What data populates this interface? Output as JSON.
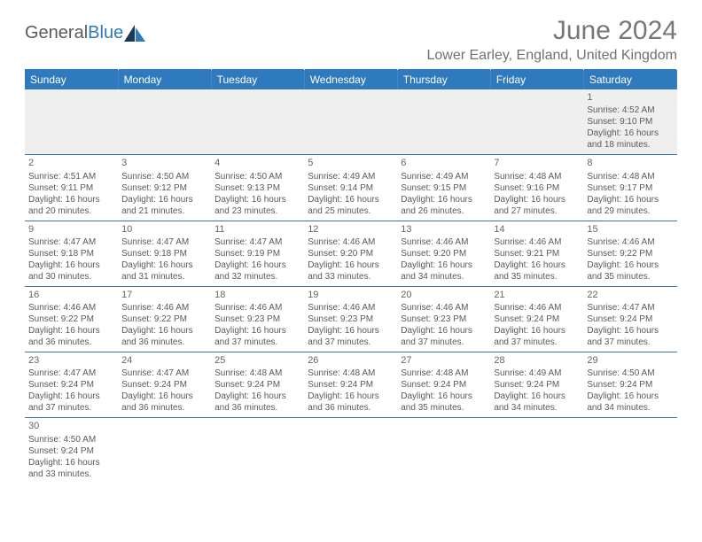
{
  "brand": {
    "part1": "General",
    "part2": "Blue"
  },
  "title": "June 2024",
  "location": "Lower Earley, England, United Kingdom",
  "colors": {
    "header_bg": "#2f79bd",
    "header_text": "#ffffff",
    "body_text": "#5a5a5a",
    "alt_row_bg": "#efefef",
    "border": "#2f79bd"
  },
  "day_headers": [
    "Sunday",
    "Monday",
    "Tuesday",
    "Wednesday",
    "Thursday",
    "Friday",
    "Saturday"
  ],
  "weeks": [
    [
      null,
      null,
      null,
      null,
      null,
      null,
      {
        "n": "1",
        "sunrise": "Sunrise: 4:52 AM",
        "sunset": "Sunset: 9:10 PM",
        "daylight": "Daylight: 16 hours and 18 minutes."
      }
    ],
    [
      {
        "n": "2",
        "sunrise": "Sunrise: 4:51 AM",
        "sunset": "Sunset: 9:11 PM",
        "daylight": "Daylight: 16 hours and 20 minutes."
      },
      {
        "n": "3",
        "sunrise": "Sunrise: 4:50 AM",
        "sunset": "Sunset: 9:12 PM",
        "daylight": "Daylight: 16 hours and 21 minutes."
      },
      {
        "n": "4",
        "sunrise": "Sunrise: 4:50 AM",
        "sunset": "Sunset: 9:13 PM",
        "daylight": "Daylight: 16 hours and 23 minutes."
      },
      {
        "n": "5",
        "sunrise": "Sunrise: 4:49 AM",
        "sunset": "Sunset: 9:14 PM",
        "daylight": "Daylight: 16 hours and 25 minutes."
      },
      {
        "n": "6",
        "sunrise": "Sunrise: 4:49 AM",
        "sunset": "Sunset: 9:15 PM",
        "daylight": "Daylight: 16 hours and 26 minutes."
      },
      {
        "n": "7",
        "sunrise": "Sunrise: 4:48 AM",
        "sunset": "Sunset: 9:16 PM",
        "daylight": "Daylight: 16 hours and 27 minutes."
      },
      {
        "n": "8",
        "sunrise": "Sunrise: 4:48 AM",
        "sunset": "Sunset: 9:17 PM",
        "daylight": "Daylight: 16 hours and 29 minutes."
      }
    ],
    [
      {
        "n": "9",
        "sunrise": "Sunrise: 4:47 AM",
        "sunset": "Sunset: 9:18 PM",
        "daylight": "Daylight: 16 hours and 30 minutes."
      },
      {
        "n": "10",
        "sunrise": "Sunrise: 4:47 AM",
        "sunset": "Sunset: 9:18 PM",
        "daylight": "Daylight: 16 hours and 31 minutes."
      },
      {
        "n": "11",
        "sunrise": "Sunrise: 4:47 AM",
        "sunset": "Sunset: 9:19 PM",
        "daylight": "Daylight: 16 hours and 32 minutes."
      },
      {
        "n": "12",
        "sunrise": "Sunrise: 4:46 AM",
        "sunset": "Sunset: 9:20 PM",
        "daylight": "Daylight: 16 hours and 33 minutes."
      },
      {
        "n": "13",
        "sunrise": "Sunrise: 4:46 AM",
        "sunset": "Sunset: 9:20 PM",
        "daylight": "Daylight: 16 hours and 34 minutes."
      },
      {
        "n": "14",
        "sunrise": "Sunrise: 4:46 AM",
        "sunset": "Sunset: 9:21 PM",
        "daylight": "Daylight: 16 hours and 35 minutes."
      },
      {
        "n": "15",
        "sunrise": "Sunrise: 4:46 AM",
        "sunset": "Sunset: 9:22 PM",
        "daylight": "Daylight: 16 hours and 35 minutes."
      }
    ],
    [
      {
        "n": "16",
        "sunrise": "Sunrise: 4:46 AM",
        "sunset": "Sunset: 9:22 PM",
        "daylight": "Daylight: 16 hours and 36 minutes."
      },
      {
        "n": "17",
        "sunrise": "Sunrise: 4:46 AM",
        "sunset": "Sunset: 9:22 PM",
        "daylight": "Daylight: 16 hours and 36 minutes."
      },
      {
        "n": "18",
        "sunrise": "Sunrise: 4:46 AM",
        "sunset": "Sunset: 9:23 PM",
        "daylight": "Daylight: 16 hours and 37 minutes."
      },
      {
        "n": "19",
        "sunrise": "Sunrise: 4:46 AM",
        "sunset": "Sunset: 9:23 PM",
        "daylight": "Daylight: 16 hours and 37 minutes."
      },
      {
        "n": "20",
        "sunrise": "Sunrise: 4:46 AM",
        "sunset": "Sunset: 9:23 PM",
        "daylight": "Daylight: 16 hours and 37 minutes."
      },
      {
        "n": "21",
        "sunrise": "Sunrise: 4:46 AM",
        "sunset": "Sunset: 9:24 PM",
        "daylight": "Daylight: 16 hours and 37 minutes."
      },
      {
        "n": "22",
        "sunrise": "Sunrise: 4:47 AM",
        "sunset": "Sunset: 9:24 PM",
        "daylight": "Daylight: 16 hours and 37 minutes."
      }
    ],
    [
      {
        "n": "23",
        "sunrise": "Sunrise: 4:47 AM",
        "sunset": "Sunset: 9:24 PM",
        "daylight": "Daylight: 16 hours and 37 minutes."
      },
      {
        "n": "24",
        "sunrise": "Sunrise: 4:47 AM",
        "sunset": "Sunset: 9:24 PM",
        "daylight": "Daylight: 16 hours and 36 minutes."
      },
      {
        "n": "25",
        "sunrise": "Sunrise: 4:48 AM",
        "sunset": "Sunset: 9:24 PM",
        "daylight": "Daylight: 16 hours and 36 minutes."
      },
      {
        "n": "26",
        "sunrise": "Sunrise: 4:48 AM",
        "sunset": "Sunset: 9:24 PM",
        "daylight": "Daylight: 16 hours and 36 minutes."
      },
      {
        "n": "27",
        "sunrise": "Sunrise: 4:48 AM",
        "sunset": "Sunset: 9:24 PM",
        "daylight": "Daylight: 16 hours and 35 minutes."
      },
      {
        "n": "28",
        "sunrise": "Sunrise: 4:49 AM",
        "sunset": "Sunset: 9:24 PM",
        "daylight": "Daylight: 16 hours and 34 minutes."
      },
      {
        "n": "29",
        "sunrise": "Sunrise: 4:50 AM",
        "sunset": "Sunset: 9:24 PM",
        "daylight": "Daylight: 16 hours and 34 minutes."
      }
    ],
    [
      {
        "n": "30",
        "sunrise": "Sunrise: 4:50 AM",
        "sunset": "Sunset: 9:24 PM",
        "daylight": "Daylight: 16 hours and 33 minutes."
      },
      null,
      null,
      null,
      null,
      null,
      null
    ]
  ]
}
